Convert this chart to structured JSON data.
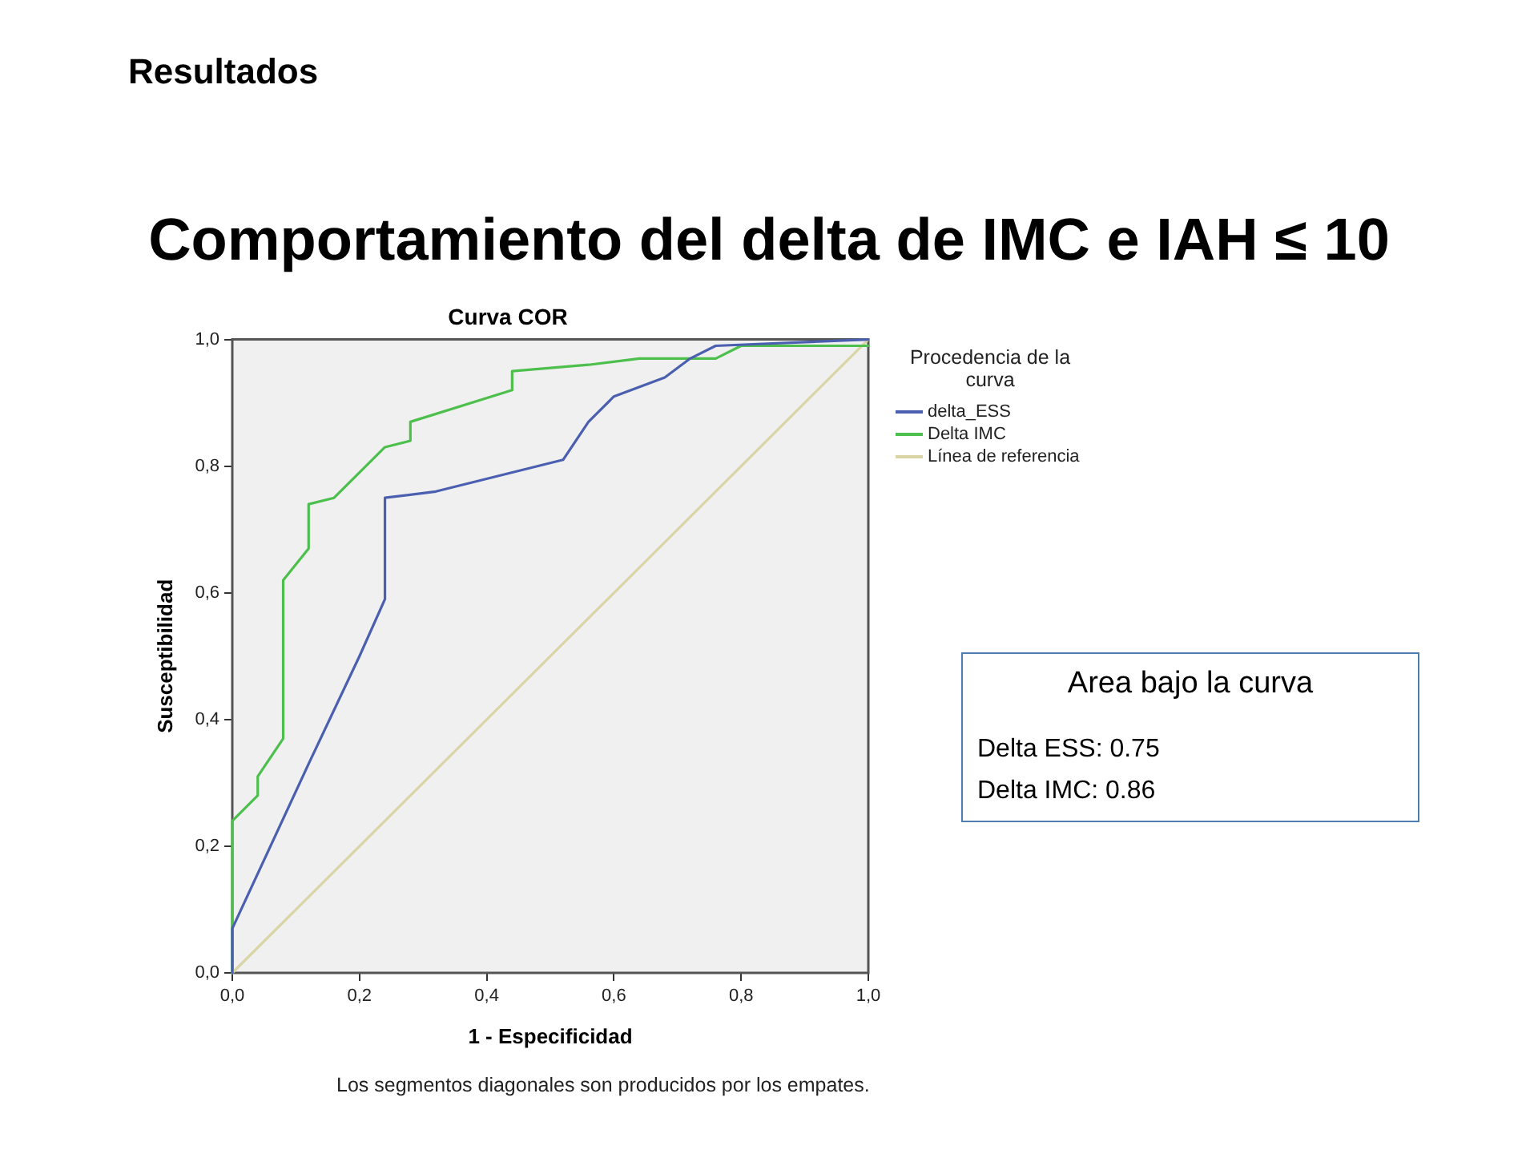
{
  "chart_data": {
    "type": "line",
    "title": "Comportamiento del delta de IMC e IAH ≤ 10",
    "subtitle": "Curva COR",
    "xlabel": "1 - Especificidad",
    "ylabel": "Susceptibilidad",
    "legend_title": "Procedencia de la curva",
    "annotations": [
      "Resultados",
      "Los segmentos diagonales son producidos por los empates.",
      "Area bajo la curva",
      "Delta ESS: 0.75",
      "Delta IMC: 0.86"
    ],
    "series": [
      {
        "name": "delta_ESS",
        "color": "#4a5fb0",
        "x": [
          0,
          0,
          0.12,
          0.2,
          0.24,
          0.24,
          0.32,
          0.52,
          0.56,
          0.6,
          0.68,
          0.72,
          0.76,
          1
        ],
        "values": [
          0,
          0.07,
          0.33,
          0.5,
          0.59,
          0.75,
          0.76,
          0.81,
          0.87,
          0.91,
          0.94,
          0.97,
          0.99,
          1
        ]
      },
      {
        "name": "Delta IMC",
        "color": "#4cbf4c",
        "x": [
          0,
          0,
          0.04,
          0.04,
          0.08,
          0.08,
          0.12,
          0.12,
          0.16,
          0.24,
          0.28,
          0.28,
          0.44,
          0.44,
          0.56,
          0.64,
          0.76,
          0.8,
          1
        ],
        "values": [
          0,
          0.24,
          0.28,
          0.31,
          0.37,
          0.62,
          0.67,
          0.74,
          0.75,
          0.83,
          0.84,
          0.87,
          0.92,
          0.95,
          0.96,
          0.97,
          0.97,
          0.99,
          0.99
        ]
      },
      {
        "name": "Línea de referencia",
        "color": "#d9d5a7",
        "x": [
          0,
          1
        ],
        "values": [
          0,
          1
        ]
      }
    ],
    "xlim": [
      0,
      1
    ],
    "ylim": [
      0,
      1
    ],
    "xticks": [
      {
        "value": 0,
        "label": "0,0"
      },
      {
        "value": 0.2,
        "label": "0,2"
      },
      {
        "value": 0.4,
        "label": "0,4"
      },
      {
        "value": 0.6,
        "label": "0,6"
      },
      {
        "value": 0.8,
        "label": "0,8"
      },
      {
        "value": 1,
        "label": "1,0"
      }
    ],
    "yticks": [
      {
        "value": 0,
        "label": "0,0"
      },
      {
        "value": 0.2,
        "label": "0,2"
      },
      {
        "value": 0.4,
        "label": "0,4"
      },
      {
        "value": 0.6,
        "label": "0,6"
      },
      {
        "value": 0.8,
        "label": "0,8"
      },
      {
        "value": 1,
        "label": "1,0"
      }
    ],
    "legend": "right",
    "marker": "none",
    "line_style": "solid"
  }
}
